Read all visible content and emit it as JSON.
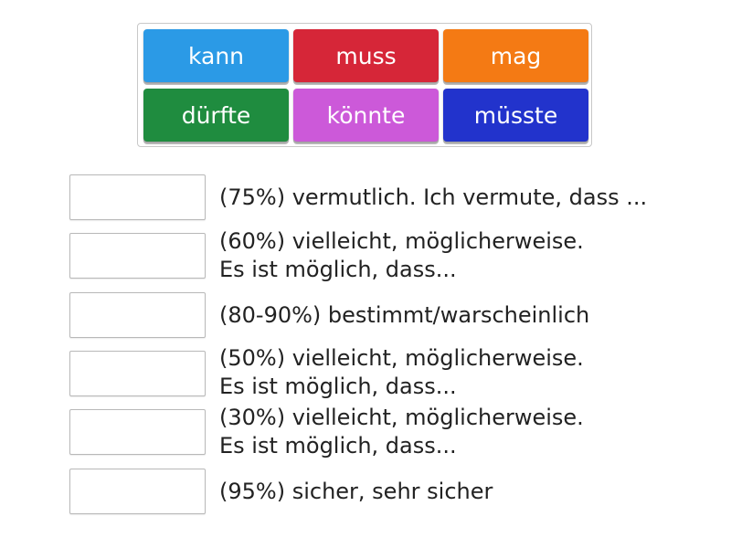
{
  "word_bank": {
    "tiles": [
      {
        "label": "kann",
        "color": "#2b9ae6"
      },
      {
        "label": "muss",
        "color": "#d62638"
      },
      {
        "label": "mag",
        "color": "#f47a14"
      },
      {
        "label": "dürfte",
        "color": "#1f8c3f"
      },
      {
        "label": "könnte",
        "color": "#cc59d9"
      },
      {
        "label": "müsste",
        "color": "#2233cc"
      }
    ]
  },
  "match_rows": [
    {
      "answer": "",
      "lines": [
        "(75%) vermutlich. Ich vermute, dass ..."
      ]
    },
    {
      "answer": "",
      "lines": [
        "(60%) vielleicht, möglicherweise.",
        "Es ist möglich, dass..."
      ]
    },
    {
      "answer": "",
      "lines": [
        "(80-90%) bestimmt/warscheinlich"
      ]
    },
    {
      "answer": "",
      "lines": [
        "(50%) vielleicht, möglicherweise.",
        "Es ist möglich, dass..."
      ]
    },
    {
      "answer": "",
      "lines": [
        "(30%) vielleicht, möglicherweise.",
        "Es ist möglich, dass..."
      ]
    },
    {
      "answer": "",
      "lines": [
        "(95%) sicher, sehr sicher"
      ]
    }
  ]
}
